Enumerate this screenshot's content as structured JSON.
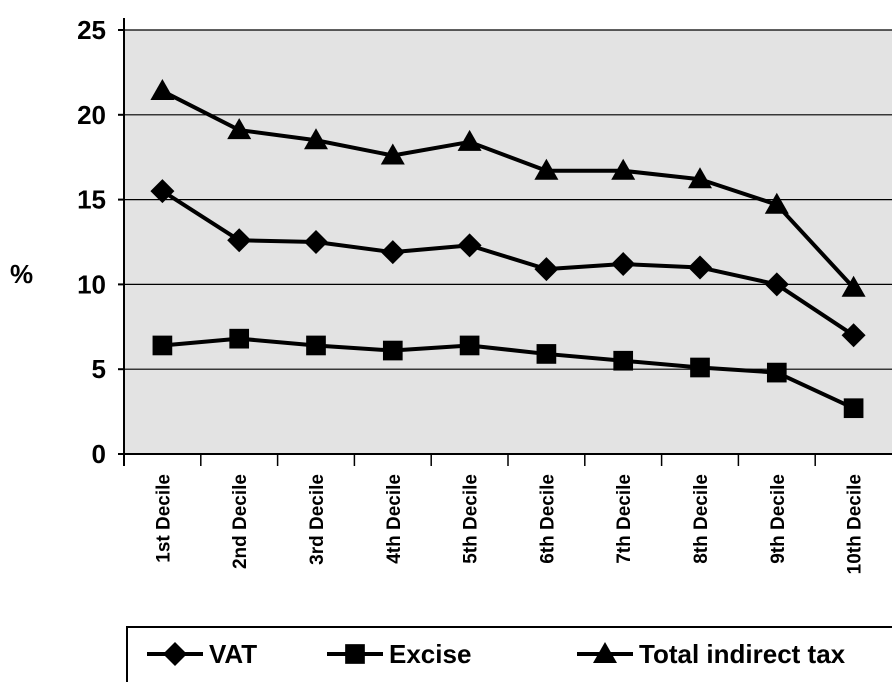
{
  "chart_data": {
    "type": "line",
    "title": "",
    "xlabel": "",
    "ylabel": "%",
    "ylim": [
      0,
      25
    ],
    "yticks": [
      0,
      5,
      10,
      15,
      20,
      25
    ],
    "grid": "horizontal",
    "legend_position": "bottom",
    "categories": [
      "1st Decile",
      "2nd Decile",
      "3rd Decile",
      "4th Decile",
      "5th Decile",
      "6th Decile",
      "7th Decile",
      "8th Decile",
      "9th Decile",
      "10th Decile"
    ],
    "series": [
      {
        "name": "VAT",
        "marker": "diamond",
        "values": [
          15.5,
          12.6,
          12.5,
          11.9,
          12.3,
          10.9,
          11.2,
          11.0,
          10.0,
          7.0
        ]
      },
      {
        "name": "Excise",
        "marker": "square",
        "values": [
          6.4,
          6.8,
          6.4,
          6.1,
          6.4,
          5.9,
          5.5,
          5.1,
          4.8,
          2.7
        ]
      },
      {
        "name": "Total indirect tax",
        "marker": "triangle",
        "values": [
          21.4,
          19.1,
          18.5,
          17.6,
          18.4,
          16.7,
          16.7,
          16.2,
          14.7,
          9.8
        ]
      }
    ],
    "colors": {
      "plot_background": "#e3e3e3",
      "line": "#000000",
      "gridline": "#000000"
    }
  }
}
